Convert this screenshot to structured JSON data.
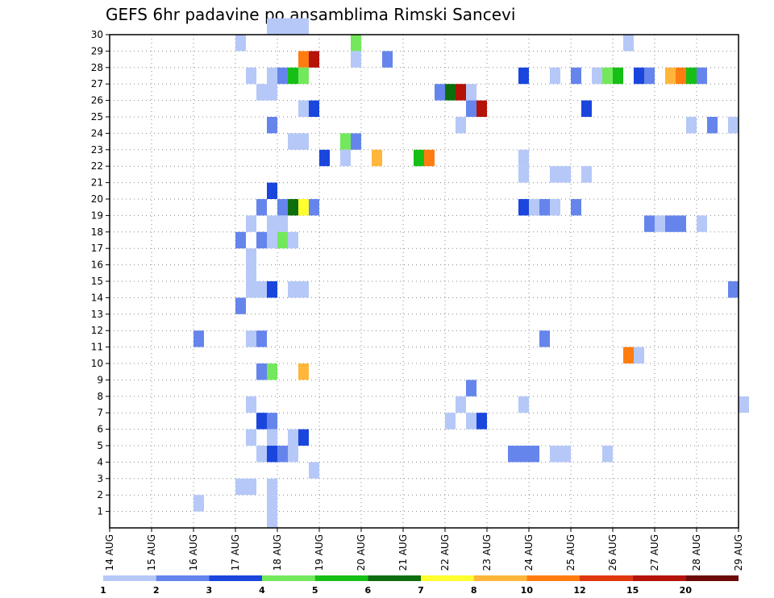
{
  "chart_data": {
    "type": "heatmap",
    "title": "GEFS 6hr padavine po ansamblima Rimski Sancevi",
    "x_tick_labels": [
      "14 AUG",
      "15 AUG",
      "16 AUG",
      "17 AUG",
      "18 AUG",
      "19 AUG",
      "20 AUG",
      "21 AUG",
      "22 AUG",
      "23 AUG",
      "24 AUG",
      "25 AUG",
      "26 AUG",
      "27 AUG",
      "28 AUG",
      "29 AUG"
    ],
    "y_tick_labels": [
      "1",
      "2",
      "3",
      "4",
      "5",
      "6",
      "7",
      "8",
      "9",
      "10",
      "11",
      "12",
      "13",
      "14",
      "15",
      "16",
      "17",
      "18",
      "19",
      "20",
      "21",
      "22",
      "23",
      "24",
      "25",
      "26",
      "27",
      "28",
      "29",
      "30"
    ],
    "x_unit": "6hr steps from 14 AUG 00Z",
    "colorbar": {
      "labels": [
        "1",
        "2",
        "3",
        "4",
        "5",
        "6",
        "7",
        "8",
        "10",
        "12",
        "15",
        "20"
      ],
      "colors": [
        "#b5c8f8",
        "#6585ec",
        "#1a46dd",
        "#73e85c",
        "#16bf16",
        "#0d6e0d",
        "#ffff30",
        "#ffb63a",
        "#ff7d10",
        "#e0380c",
        "#b51208",
        "#6b0a08"
      ]
    },
    "cells": [
      {
        "x": 15,
        "y": 30,
        "v": 1
      },
      {
        "x": 16,
        "y": 30,
        "v": 1
      },
      {
        "x": 17,
        "y": 30,
        "v": 1
      },
      {
        "x": 18,
        "y": 30,
        "v": 1
      },
      {
        "x": 12,
        "y": 29,
        "v": 1
      },
      {
        "x": 23,
        "y": 29,
        "v": 4
      },
      {
        "x": 49,
        "y": 29,
        "v": 1
      },
      {
        "x": 18,
        "y": 28,
        "v": 10
      },
      {
        "x": 19,
        "y": 28,
        "v": 15
      },
      {
        "x": 23,
        "y": 28,
        "v": 1
      },
      {
        "x": 26,
        "y": 28,
        "v": 2
      },
      {
        "x": 13,
        "y": 27,
        "v": 1
      },
      {
        "x": 15,
        "y": 27,
        "v": 1
      },
      {
        "x": 16,
        "y": 27,
        "v": 2
      },
      {
        "x": 17,
        "y": 27,
        "v": 5
      },
      {
        "x": 18,
        "y": 27,
        "v": 4
      },
      {
        "x": 39,
        "y": 27,
        "v": 3
      },
      {
        "x": 42,
        "y": 27,
        "v": 1
      },
      {
        "x": 44,
        "y": 27,
        "v": 2
      },
      {
        "x": 46,
        "y": 27,
        "v": 1
      },
      {
        "x": 47,
        "y": 27,
        "v": 4
      },
      {
        "x": 48,
        "y": 27,
        "v": 5
      },
      {
        "x": 50,
        "y": 27,
        "v": 3
      },
      {
        "x": 51,
        "y": 27,
        "v": 2
      },
      {
        "x": 53,
        "y": 27,
        "v": 8
      },
      {
        "x": 54,
        "y": 27,
        "v": 10
      },
      {
        "x": 55,
        "y": 27,
        "v": 5
      },
      {
        "x": 56,
        "y": 27,
        "v": 2
      },
      {
        "x": 14,
        "y": 26,
        "v": 1
      },
      {
        "x": 15,
        "y": 26,
        "v": 1
      },
      {
        "x": 31,
        "y": 26,
        "v": 2
      },
      {
        "x": 32,
        "y": 26,
        "v": 6
      },
      {
        "x": 33,
        "y": 26,
        "v": 15
      },
      {
        "x": 34,
        "y": 26,
        "v": 1
      },
      {
        "x": 18,
        "y": 25,
        "v": 1
      },
      {
        "x": 19,
        "y": 25,
        "v": 3
      },
      {
        "x": 34,
        "y": 25,
        "v": 2
      },
      {
        "x": 35,
        "y": 25,
        "v": 15
      },
      {
        "x": 45,
        "y": 25,
        "v": 3
      },
      {
        "x": 15,
        "y": 24,
        "v": 2
      },
      {
        "x": 33,
        "y": 24,
        "v": 1
      },
      {
        "x": 55,
        "y": 24,
        "v": 1
      },
      {
        "x": 57,
        "y": 24,
        "v": 2
      },
      {
        "x": 59,
        "y": 24,
        "v": 1
      },
      {
        "x": 17,
        "y": 23,
        "v": 1
      },
      {
        "x": 18,
        "y": 23,
        "v": 1
      },
      {
        "x": 22,
        "y": 23,
        "v": 4
      },
      {
        "x": 23,
        "y": 23,
        "v": 2
      },
      {
        "x": 20,
        "y": 22,
        "v": 3
      },
      {
        "x": 22,
        "y": 22,
        "v": 1
      },
      {
        "x": 25,
        "y": 22,
        "v": 8
      },
      {
        "x": 29,
        "y": 22,
        "v": 5
      },
      {
        "x": 30,
        "y": 22,
        "v": 10
      },
      {
        "x": 39,
        "y": 22,
        "v": 1
      },
      {
        "x": 39,
        "y": 21,
        "v": 1
      },
      {
        "x": 42,
        "y": 21,
        "v": 1
      },
      {
        "x": 43,
        "y": 21,
        "v": 1
      },
      {
        "x": 45,
        "y": 21,
        "v": 1
      },
      {
        "x": 15,
        "y": 20,
        "v": 3
      },
      {
        "x": 14,
        "y": 19,
        "v": 2
      },
      {
        "x": 16,
        "y": 19,
        "v": 2
      },
      {
        "x": 17,
        "y": 19,
        "v": 6
      },
      {
        "x": 18,
        "y": 19,
        "v": 7
      },
      {
        "x": 19,
        "y": 19,
        "v": 2
      },
      {
        "x": 39,
        "y": 19,
        "v": 3
      },
      {
        "x": 40,
        "y": 19,
        "v": 1
      },
      {
        "x": 41,
        "y": 19,
        "v": 2
      },
      {
        "x": 42,
        "y": 19,
        "v": 1
      },
      {
        "x": 44,
        "y": 19,
        "v": 2
      },
      {
        "x": 13,
        "y": 18,
        "v": 1
      },
      {
        "x": 15,
        "y": 18,
        "v": 1
      },
      {
        "x": 16,
        "y": 18,
        "v": 1
      },
      {
        "x": 51,
        "y": 18,
        "v": 2
      },
      {
        "x": 52,
        "y": 18,
        "v": 1
      },
      {
        "x": 53,
        "y": 18,
        "v": 2
      },
      {
        "x": 54,
        "y": 18,
        "v": 2
      },
      {
        "x": 56,
        "y": 18,
        "v": 1
      },
      {
        "x": 12,
        "y": 17,
        "v": 2
      },
      {
        "x": 14,
        "y": 17,
        "v": 2
      },
      {
        "x": 15,
        "y": 17,
        "v": 1
      },
      {
        "x": 16,
        "y": 17,
        "v": 4
      },
      {
        "x": 17,
        "y": 17,
        "v": 1
      },
      {
        "x": 13,
        "y": 16,
        "v": 1
      },
      {
        "x": 13,
        "y": 15,
        "v": 1
      },
      {
        "x": 13,
        "y": 14,
        "v": 1
      },
      {
        "x": 14,
        "y": 14,
        "v": 1
      },
      {
        "x": 15,
        "y": 14,
        "v": 3
      },
      {
        "x": 17,
        "y": 14,
        "v": 1
      },
      {
        "x": 18,
        "y": 14,
        "v": 1
      },
      {
        "x": 59,
        "y": 14,
        "v": 2
      },
      {
        "x": 12,
        "y": 13,
        "v": 2
      },
      {
        "x": 8,
        "y": 11,
        "v": 2
      },
      {
        "x": 13,
        "y": 11,
        "v": 1
      },
      {
        "x": 14,
        "y": 11,
        "v": 2
      },
      {
        "x": 41,
        "y": 11,
        "v": 2
      },
      {
        "x": 49,
        "y": 10,
        "v": 10
      },
      {
        "x": 50,
        "y": 10,
        "v": 1
      },
      {
        "x": 14,
        "y": 9,
        "v": 2
      },
      {
        "x": 15,
        "y": 9,
        "v": 4
      },
      {
        "x": 18,
        "y": 9,
        "v": 8
      },
      {
        "x": 34,
        "y": 8,
        "v": 2
      },
      {
        "x": 13,
        "y": 7,
        "v": 1
      },
      {
        "x": 33,
        "y": 7,
        "v": 1
      },
      {
        "x": 39,
        "y": 7,
        "v": 1
      },
      {
        "x": 60,
        "y": 7,
        "v": 1
      },
      {
        "x": 14,
        "y": 6,
        "v": 3
      },
      {
        "x": 15,
        "y": 6,
        "v": 2
      },
      {
        "x": 32,
        "y": 6,
        "v": 1
      },
      {
        "x": 34,
        "y": 6,
        "v": 1
      },
      {
        "x": 35,
        "y": 6,
        "v": 3
      },
      {
        "x": 13,
        "y": 5,
        "v": 1
      },
      {
        "x": 15,
        "y": 5,
        "v": 1
      },
      {
        "x": 17,
        "y": 5,
        "v": 1
      },
      {
        "x": 18,
        "y": 5,
        "v": 3
      },
      {
        "x": 14,
        "y": 4,
        "v": 1
      },
      {
        "x": 15,
        "y": 4,
        "v": 3
      },
      {
        "x": 16,
        "y": 4,
        "v": 2
      },
      {
        "x": 17,
        "y": 4,
        "v": 1
      },
      {
        "x": 38,
        "y": 4,
        "v": 2
      },
      {
        "x": 39,
        "y": 4,
        "v": 2
      },
      {
        "x": 40,
        "y": 4,
        "v": 2
      },
      {
        "x": 42,
        "y": 4,
        "v": 1
      },
      {
        "x": 43,
        "y": 4,
        "v": 1
      },
      {
        "x": 47,
        "y": 4,
        "v": 1
      },
      {
        "x": 19,
        "y": 3,
        "v": 1
      },
      {
        "x": 12,
        "y": 2,
        "v": 1
      },
      {
        "x": 13,
        "y": 2,
        "v": 1
      },
      {
        "x": 15,
        "y": 2,
        "v": 1
      },
      {
        "x": 8,
        "y": 1,
        "v": 1
      },
      {
        "x": 15,
        "y": 1,
        "v": 1
      },
      {
        "x": 15,
        "y": 0,
        "v": 1
      }
    ]
  }
}
